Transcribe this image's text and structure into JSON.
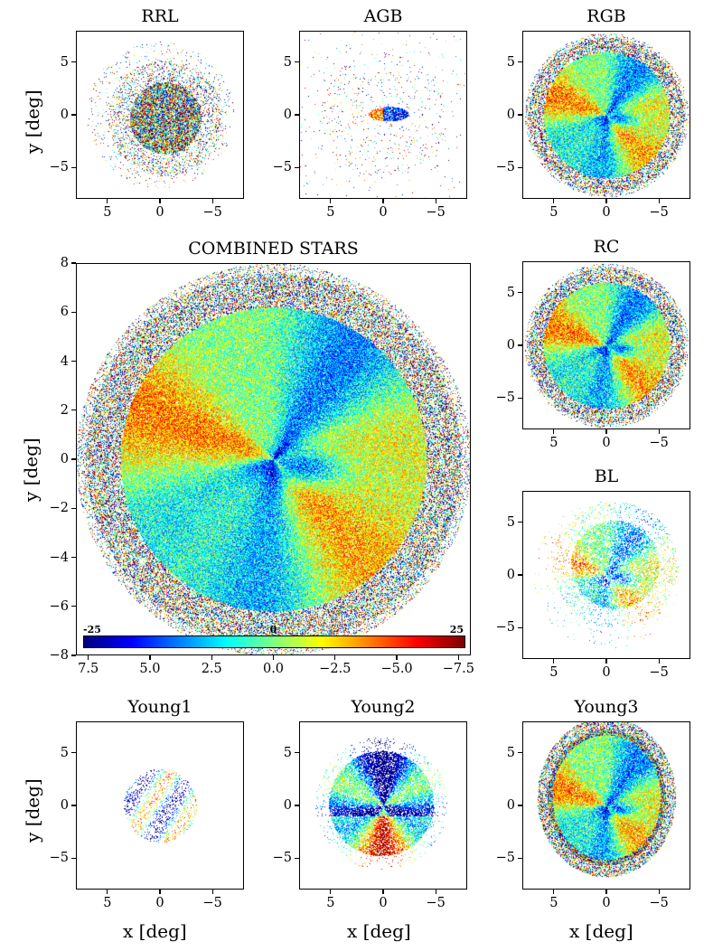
{
  "figure": {
    "xlabel": "x [deg]",
    "ylabel": "y [deg]"
  },
  "colorbar": {
    "min_label": "-25",
    "mid_label": "0",
    "max_label": "25",
    "colormap": "jet"
  },
  "chart_data": [
    {
      "type": "heatmap",
      "title": "RRL",
      "xlim": [
        8,
        -8
      ],
      "ylim": [
        -8,
        8
      ],
      "xticks": [
        "5",
        "0",
        "−5"
      ],
      "yticks": [
        "5",
        "0",
        "−5"
      ],
      "xtick_values": [
        5,
        0,
        -5
      ],
      "ytick_values": [
        5,
        0,
        -5
      ]
    },
    {
      "type": "heatmap",
      "title": "AGB",
      "xlim": [
        8,
        -8
      ],
      "ylim": [
        -8,
        8
      ],
      "xticks": [
        "5",
        "0",
        "−5"
      ],
      "yticks": [
        "5",
        "0",
        "−5"
      ],
      "xtick_values": [
        5,
        0,
        -5
      ],
      "ytick_values": [
        5,
        0,
        -5
      ]
    },
    {
      "type": "heatmap",
      "title": "RGB",
      "xlim": [
        8,
        -8
      ],
      "ylim": [
        -8,
        8
      ],
      "xticks": [
        "5",
        "0",
        "−5"
      ],
      "yticks": [
        "5",
        "0",
        "−5"
      ],
      "xtick_values": [
        5,
        0,
        -5
      ],
      "ytick_values": [
        5,
        0,
        -5
      ]
    },
    {
      "type": "heatmap",
      "title": "COMBINED STARS",
      "xlim": [
        8,
        -8
      ],
      "ylim": [
        -8,
        8
      ],
      "xticks": [
        "7.5",
        "5.0",
        "2.5",
        "0.0",
        "−2.5",
        "−5.0",
        "−7.5"
      ],
      "xtick_values": [
        7.5,
        5,
        2.5,
        0,
        -2.5,
        -5,
        -7.5
      ],
      "yticks": [
        "8",
        "6",
        "4",
        "2",
        "0",
        "−2",
        "−4",
        "−6",
        "−8"
      ],
      "ytick_values": [
        8,
        6,
        4,
        2,
        0,
        -2,
        -4,
        -6,
        -8
      ],
      "color_range": [
        -25,
        25
      ]
    },
    {
      "type": "heatmap",
      "title": "RC",
      "xlim": [
        8,
        -8
      ],
      "ylim": [
        -8,
        8
      ],
      "xticks": [
        "5",
        "0",
        "−5"
      ],
      "yticks": [
        "5",
        "0",
        "−5"
      ],
      "xtick_values": [
        5,
        0,
        -5
      ],
      "ytick_values": [
        5,
        0,
        -5
      ]
    },
    {
      "type": "heatmap",
      "title": "BL",
      "xlim": [
        8,
        -8
      ],
      "ylim": [
        -8,
        8
      ],
      "xticks": [
        "5",
        "0",
        "−5"
      ],
      "yticks": [
        "5",
        "0",
        "−5"
      ],
      "xtick_values": [
        5,
        0,
        -5
      ],
      "ytick_values": [
        5,
        0,
        -5
      ]
    },
    {
      "type": "heatmap",
      "title": "Young1",
      "xlim": [
        8,
        -8
      ],
      "ylim": [
        -8,
        8
      ],
      "xticks": [
        "5",
        "0",
        "−5"
      ],
      "yticks": [
        "5",
        "0",
        "−5"
      ],
      "xtick_values": [
        5,
        0,
        -5
      ],
      "ytick_values": [
        5,
        0,
        -5
      ]
    },
    {
      "type": "heatmap",
      "title": "Young2",
      "xlim": [
        8,
        -8
      ],
      "ylim": [
        -8,
        8
      ],
      "xticks": [
        "5",
        "0",
        "−5"
      ],
      "yticks": [
        "5",
        "0",
        "−5"
      ],
      "xtick_values": [
        5,
        0,
        -5
      ],
      "ytick_values": [
        5,
        0,
        -5
      ]
    },
    {
      "type": "heatmap",
      "title": "Young3",
      "xlim": [
        8,
        -8
      ],
      "ylim": [
        -8,
        8
      ],
      "xticks": [
        "5",
        "0",
        "−5"
      ],
      "yticks": [
        "5",
        "0",
        "−5"
      ],
      "xtick_values": [
        5,
        0,
        -5
      ],
      "ytick_values": [
        5,
        0,
        -5
      ]
    }
  ]
}
